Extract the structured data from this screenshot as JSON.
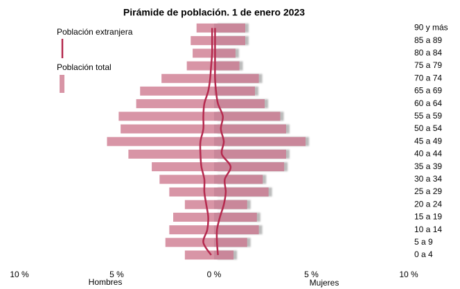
{
  "chart_data": {
    "type": "pyramid",
    "title": "Pirámide de población. 1 de enero 2023",
    "categories": [
      "0 a 4",
      "5 a 9",
      "10 a 14",
      "15 a 19",
      "20 a 24",
      "25 a 29",
      "30 a 34",
      "35 a 39",
      "40 a 44",
      "45 a 49",
      "50 a 54",
      "55 a 59",
      "60 a 64",
      "65 a 69",
      "70 a 74",
      "75 a 79",
      "80 a 84",
      "85 a 89",
      "90 y más"
    ],
    "left_label": "Hombres",
    "right_label": "Mujeres",
    "series": [
      {
        "name": "Población total",
        "color": "#d895a6",
        "color_right": "#c9879a",
        "hombres": [
          1.5,
          2.5,
          2.3,
          2.1,
          1.5,
          2.3,
          2.8,
          3.2,
          4.4,
          5.5,
          4.8,
          4.9,
          4.0,
          3.8,
          2.7,
          1.4,
          1.1,
          1.2,
          0.9
        ],
        "mujeres": [
          1.0,
          1.7,
          2.3,
          2.2,
          1.7,
          2.8,
          2.5,
          3.6,
          3.7,
          4.7,
          3.7,
          3.4,
          2.6,
          2.1,
          2.3,
          1.3,
          1.1,
          1.6,
          1.6
        ]
      },
      {
        "name": "Población extranjera",
        "color": "#b5294e",
        "hombres": [
          0.15,
          0.55,
          0.35,
          0.3,
          0.4,
          0.5,
          0.5,
          0.65,
          0.7,
          0.7,
          0.55,
          0.55,
          0.5,
          0.3,
          0.2,
          0.15,
          0.1,
          0.1,
          0.1
        ],
        "mujeres": [
          0.2,
          0.15,
          0.15,
          0.3,
          0.5,
          0.6,
          0.55,
          0.85,
          0.4,
          0.5,
          0.35,
          0.45,
          0.2,
          0.1,
          0.05,
          0.05,
          0.05,
          0.05,
          0.05
        ]
      }
    ],
    "xlim": [
      -10,
      10
    ],
    "xticks": [
      {
        "value": -10,
        "label": "10 %"
      },
      {
        "value": -5,
        "label": "5 %"
      },
      {
        "value": 0,
        "label": "0 %"
      },
      {
        "value": 5,
        "label": "5 %"
      },
      {
        "value": 10,
        "label": "10 %"
      }
    ],
    "legend": "upper left"
  }
}
